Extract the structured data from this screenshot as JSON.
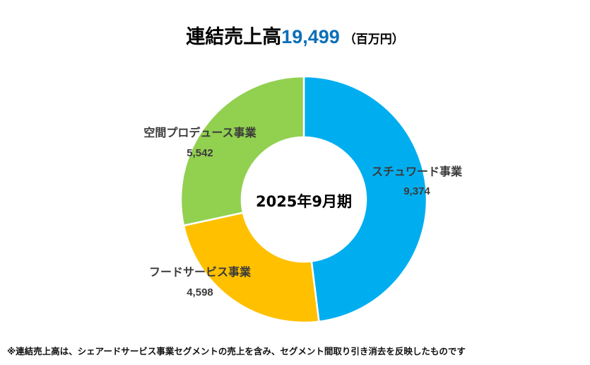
{
  "title": {
    "main": "連結売上高",
    "value": "19,499",
    "unit": "（百万円）"
  },
  "chart_data": {
    "type": "pie",
    "variant": "donut",
    "center_label": "2025年9月期",
    "start_angle_deg": 0,
    "direction": "clockwise",
    "slices": [
      {
        "label": "スチュワード事業",
        "value": 9374,
        "value_label": "9,374",
        "color": "#00aeef"
      },
      {
        "label": "フードサービス事業",
        "value": 4598,
        "value_label": "4,598",
        "color": "#ffc000"
      },
      {
        "label": "空間プロデュース事業",
        "value": 5542,
        "value_label": "5,542",
        "color": "#92d050"
      }
    ]
  },
  "footnote": "※連結売上高は、シェアードサービス事業セグメントの売上を含み、セグメント間取り引き消去を反映したものです"
}
